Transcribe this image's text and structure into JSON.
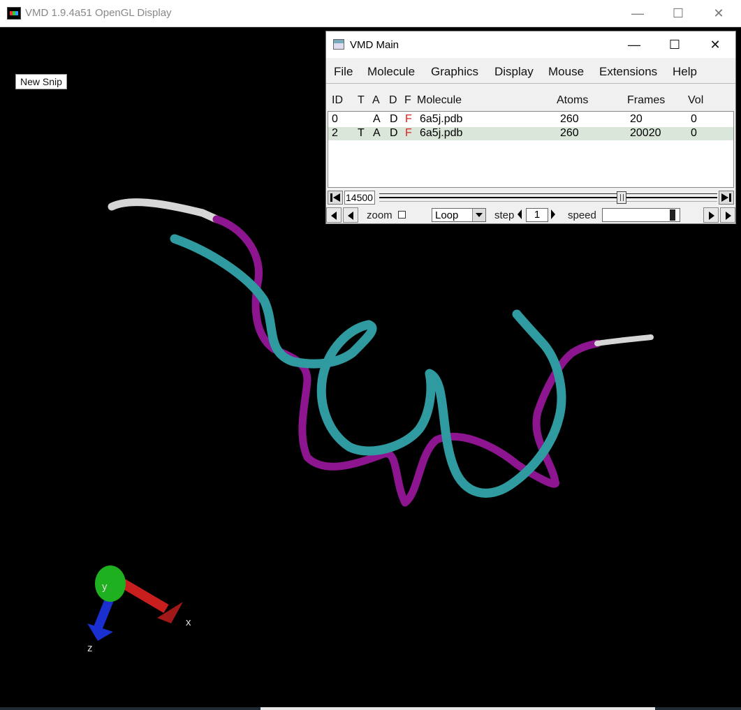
{
  "gl_window": {
    "title": "VMD 1.9.4a51 OpenGL Display",
    "minimize": "—",
    "maximize": "☐",
    "close": "✕"
  },
  "overlay": {
    "new_snip": "New Snip"
  },
  "axes": {
    "x": "x",
    "y": "y",
    "z": "z"
  },
  "colors": {
    "backbone_cyan": "#2f9aa0",
    "backbone_purple": "#8e1590",
    "terminal_white": "#d6d6d6",
    "axis_x": "#c81e1e",
    "axis_y": "#1fb01f",
    "axis_z": "#1a2fcf"
  },
  "vmd_main": {
    "title": "VMD Main",
    "minimize": "—",
    "maximize": "☐",
    "close": "✕",
    "menu": [
      "File",
      "Molecule",
      "Graphics",
      "Display",
      "Mouse",
      "Extensions",
      "Help"
    ],
    "columns": [
      "ID",
      "T",
      "A",
      "D",
      "F",
      "Molecule",
      "Atoms",
      "Frames",
      "Vol"
    ],
    "molecules": [
      {
        "id": "0",
        "t": "",
        "a": "A",
        "d": "D",
        "f": "F",
        "name": "6a5j.pdb",
        "atoms": "260",
        "frames": "20",
        "vol": "0"
      },
      {
        "id": "2",
        "t": "T",
        "a": "A",
        "d": "D",
        "f": "F",
        "name": "6a5j.pdb",
        "atoms": "260",
        "frames": "20020",
        "vol": "0"
      }
    ],
    "current_frame": "14500",
    "frame_position": 0.724,
    "zoom_label": "zoom",
    "loop_mode": "Loop",
    "step_label": "step",
    "step_value": "1",
    "speed_label": "speed",
    "speed_level": 1.0
  }
}
